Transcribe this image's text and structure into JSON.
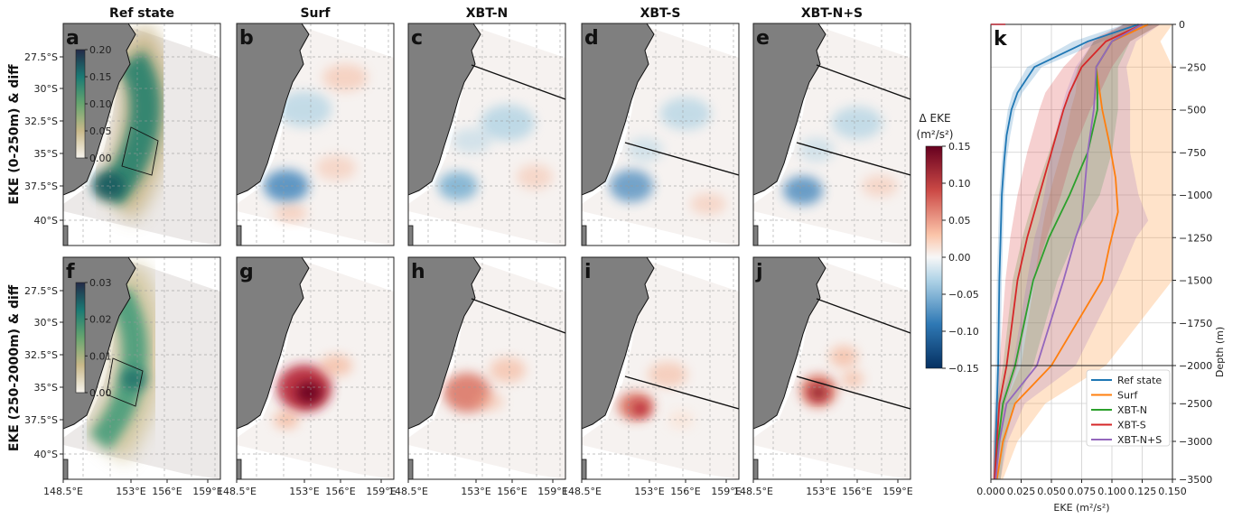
{
  "panels": {
    "titles": [
      "Ref state",
      "Surf",
      "XBT-N",
      "XBT-S",
      "XBT-N+S"
    ],
    "letters_top": [
      "a",
      "b",
      "c",
      "d",
      "e"
    ],
    "letters_bottom": [
      "f",
      "g",
      "h",
      "i",
      "j"
    ],
    "letter_profile": "k",
    "row_labels": [
      "EKE (0-250m) & diff",
      "EKE (250-2000m) & diff"
    ],
    "lat_ticks": [
      "27.5°S",
      "30°S",
      "32.5°S",
      "35°S",
      "37.5°S",
      "40°S"
    ],
    "lon_ticks": [
      "148.5°E",
      "153°E",
      "156°E",
      "159°E"
    ]
  },
  "colorbars": {
    "ref_top_ticks": [
      "0.20",
      "0.15",
      "0.10",
      "0.05",
      "0.00"
    ],
    "ref_bottom_ticks": [
      "0.03",
      "0.02",
      "0.01",
      "0.00"
    ],
    "diff_label_line1": "Δ EKE",
    "diff_label_line2": "(m²/s²)",
    "diff_ticks": [
      "0.15",
      "0.10",
      "0.05",
      "0.00",
      "−0.05",
      "−0.10",
      "−0.15"
    ]
  },
  "chart_data": {
    "type": "line",
    "xlabel": "EKE (m²/s²)",
    "ylabel": "Depth (m)",
    "xlim": [
      0,
      0.15
    ],
    "ylim": [
      -3500,
      0
    ],
    "x_ticks": [
      "0.000",
      "0.025",
      "0.050",
      "0.075",
      "0.100",
      "0.125",
      "0.150"
    ],
    "y_ticks": [
      "0",
      "−250",
      "−500",
      "−750",
      "−1000",
      "−1250",
      "−1500",
      "−1750",
      "−2000",
      "−2500",
      "−3000",
      "−3500"
    ],
    "legend_position": "lower-right",
    "grid": true,
    "series": [
      {
        "name": "Ref state",
        "color": "#1f77b4",
        "depth": [
          0,
          -100,
          -250,
          -400,
          -500,
          -650,
          -800,
          -1000,
          -1250,
          -1500,
          -2000,
          -2500,
          -3000,
          -3500
        ],
        "mean": [
          0.122,
          0.08,
          0.036,
          0.022,
          0.017,
          0.013,
          0.011,
          0.009,
          0.008,
          0.007,
          0.006,
          0.005,
          0.004,
          0.003
        ],
        "lower": [
          0.11,
          0.068,
          0.03,
          0.018,
          0.014,
          0.011,
          0.009,
          0.007,
          0.006,
          0.005,
          0.004,
          0.003,
          0.002,
          0.002
        ],
        "upper": [
          0.135,
          0.092,
          0.042,
          0.026,
          0.02,
          0.016,
          0.013,
          0.011,
          0.01,
          0.009,
          0.008,
          0.007,
          0.006,
          0.005
        ]
      },
      {
        "name": "Surf",
        "color": "#ff7f0e",
        "depth": [
          0,
          -100,
          -250,
          -400,
          -500,
          -700,
          -900,
          -1100,
          -1300,
          -1500,
          -2000,
          -2500,
          -3000,
          -3500
        ],
        "mean": [
          0.13,
          0.1,
          0.087,
          0.09,
          0.092,
          0.098,
          0.103,
          0.105,
          0.098,
          0.092,
          0.05,
          0.02,
          0.01,
          0.005
        ],
        "lower": [
          0.115,
          0.085,
          0.072,
          0.07,
          0.066,
          0.06,
          0.052,
          0.045,
          0.04,
          0.036,
          0.025,
          0.012,
          0.006,
          0.003
        ],
        "upper": [
          0.15,
          0.14,
          0.15,
          0.15,
          0.15,
          0.15,
          0.15,
          0.15,
          0.15,
          0.15,
          0.095,
          0.045,
          0.022,
          0.01
        ]
      },
      {
        "name": "XBT-N",
        "color": "#2ca02c",
        "depth": [
          0,
          -100,
          -250,
          -400,
          -500,
          -750,
          -1000,
          -1250,
          -1500,
          -2000,
          -2500,
          -3000,
          -3500
        ],
        "mean": [
          0.125,
          0.1,
          0.087,
          0.088,
          0.088,
          0.08,
          0.065,
          0.048,
          0.035,
          0.02,
          0.01,
          0.006,
          0.004
        ],
        "lower": [
          0.11,
          0.085,
          0.072,
          0.065,
          0.06,
          0.048,
          0.036,
          0.026,
          0.018,
          0.01,
          0.005,
          0.003,
          0.002
        ],
        "upper": [
          0.14,
          0.115,
          0.105,
          0.105,
          0.105,
          0.1,
          0.09,
          0.07,
          0.055,
          0.035,
          0.02,
          0.012,
          0.008
        ]
      },
      {
        "name": "XBT-S",
        "color": "#d62728",
        "depth": [
          0,
          -100,
          -250,
          -400,
          -500,
          -750,
          -1000,
          -1250,
          -1500,
          -2000,
          -2500,
          -3000,
          -3500
        ],
        "mean": [
          0.125,
          0.095,
          0.075,
          0.065,
          0.06,
          0.05,
          0.04,
          0.03,
          0.022,
          0.013,
          0.007,
          0.005,
          0.003
        ],
        "lower": [
          0.11,
          0.08,
          0.06,
          0.045,
          0.04,
          0.03,
          0.022,
          0.016,
          0.012,
          0.007,
          0.004,
          0.002,
          0.001
        ],
        "upper": [
          0.14,
          0.115,
          0.1,
          0.09,
          0.082,
          0.068,
          0.058,
          0.046,
          0.035,
          0.022,
          0.012,
          0.008,
          0.005
        ]
      },
      {
        "name": "XBT-N+S",
        "color": "#9467bd",
        "depth": [
          0,
          -100,
          -250,
          -400,
          -500,
          -750,
          -1000,
          -1150,
          -1250,
          -1500,
          -2000,
          -2500,
          -3000,
          -3500
        ],
        "mean": [
          0.125,
          0.1,
          0.087,
          0.086,
          0.085,
          0.08,
          0.077,
          0.075,
          0.07,
          0.06,
          0.038,
          0.013,
          0.007,
          0.004
        ],
        "lower": [
          0.11,
          0.085,
          0.07,
          0.062,
          0.058,
          0.05,
          0.044,
          0.04,
          0.036,
          0.03,
          0.018,
          0.007,
          0.004,
          0.002
        ],
        "upper": [
          0.14,
          0.12,
          0.112,
          0.115,
          0.115,
          0.115,
          0.122,
          0.13,
          0.12,
          0.105,
          0.07,
          0.028,
          0.014,
          0.008
        ]
      }
    ]
  }
}
